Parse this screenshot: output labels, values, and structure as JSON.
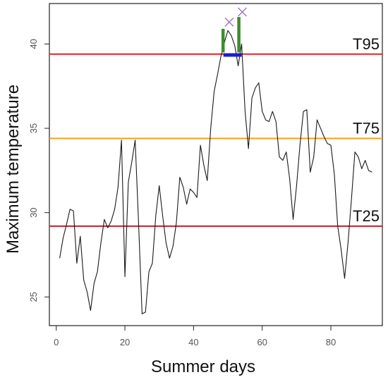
{
  "chart_data": {
    "type": "line",
    "title": "",
    "xlabel": "Summer days",
    "ylabel": "Maximum temperature",
    "xlim": [
      -2,
      95
    ],
    "ylim": [
      23.3,
      42.4
    ],
    "xticks": [
      0,
      20,
      40,
      60,
      80
    ],
    "yticks": [
      25,
      30,
      35,
      40
    ],
    "grid": false,
    "series": [
      {
        "color": "#1a1a1a",
        "x": [
          1,
          2,
          3,
          4,
          5,
          6,
          7,
          8,
          9,
          10,
          11,
          12,
          13,
          14,
          15,
          16,
          17,
          18,
          19,
          20,
          21,
          22,
          23,
          24,
          25,
          26,
          27,
          28,
          29,
          30,
          31,
          32,
          33,
          34,
          35,
          36,
          37,
          38,
          39,
          40,
          41,
          42,
          43,
          44,
          45,
          46,
          47,
          48,
          49,
          50,
          51,
          52,
          53,
          54,
          55,
          56,
          57,
          58,
          59,
          60,
          61,
          62,
          63,
          64,
          65,
          66,
          67,
          68,
          69,
          70,
          71,
          72,
          73,
          74,
          75,
          76,
          77,
          78,
          79,
          80,
          81,
          82,
          83,
          84,
          85,
          86,
          87,
          88,
          89,
          90,
          91,
          92
        ],
        "values": [
          27.3,
          28.5,
          29.3,
          30.2,
          30.1,
          27.0,
          28.6,
          26.0,
          25.3,
          24.2,
          25.8,
          26.5,
          28.2,
          29.6,
          29.1,
          29.5,
          30.2,
          31.5,
          34.3,
          26.2,
          31.8,
          33.0,
          34.3,
          29.3,
          24.0,
          24.1,
          26.5,
          27.0,
          29.8,
          31.6,
          29.8,
          28.2,
          27.3,
          28.0,
          29.4,
          32.1,
          31.5,
          30.5,
          31.4,
          31.2,
          30.9,
          34.0,
          32.8,
          31.9,
          35.0,
          37.2,
          38.2,
          39.3,
          40.1,
          40.8,
          40.5,
          39.9,
          38.7,
          40.0,
          36.0,
          33.8,
          36.8,
          37.4,
          37.7,
          36.0,
          35.5,
          35.4,
          36.0,
          35.4,
          33.3,
          33.1,
          33.6,
          32.0,
          29.6,
          31.6,
          34.0,
          36.0,
          36.1,
          32.4,
          33.3,
          35.5,
          35.0,
          34.5,
          34.1,
          34.0,
          32.3,
          29.2,
          27.8,
          26.1,
          28.2,
          30.8,
          33.6,
          33.3,
          32.6,
          33.1,
          32.5,
          32.4
        ]
      }
    ],
    "thresholds": [
      {
        "name": "T95",
        "value": 39.4,
        "color": "#e8212a"
      },
      {
        "name": "T75",
        "value": 34.4,
        "color": "#f4a21c"
      },
      {
        "name": "T25",
        "value": 29.2,
        "color": "#c4202b"
      }
    ],
    "heatwave_bars": {
      "color": "#3d8a2e",
      "bars": [
        {
          "x": 48.6,
          "y0": 39.5,
          "y1": 40.9
        },
        {
          "x": 53.2,
          "y0": 39.5,
          "y1": 41.6
        }
      ]
    },
    "heatwave_span": {
      "color": "#1a1ad6",
      "x0": 48.7,
      "x1": 54.0,
      "y": 39.35
    },
    "peak_markers": {
      "color": "#a46fc0",
      "points": [
        {
          "x": 50.4,
          "y": 41.3
        },
        {
          "x": 54.2,
          "y": 41.9
        }
      ]
    }
  }
}
